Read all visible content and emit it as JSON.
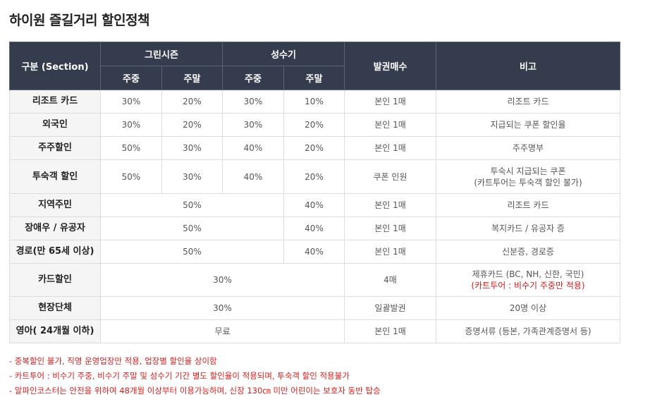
{
  "page": {
    "title": "하이원 즐길거리 할인정책"
  },
  "table": {
    "headers": {
      "section": "구분 (Section)",
      "green_season": "그린시즌",
      "peak_season": "성수기",
      "weekday": "주중",
      "weekend": "주말",
      "tickets": "발권매수",
      "remarks": "비고"
    },
    "rows": [
      {
        "name": "리조트 카드",
        "g_weekday": "30%",
        "g_weekend": "20%",
        "p_weekday": "30%",
        "p_weekend": "10%",
        "tickets": "본인 1매",
        "remark": "리조트 카드"
      },
      {
        "name": "외국인",
        "g_weekday": "30%",
        "g_weekend": "20%",
        "p_weekday": "30%",
        "p_weekend": "20%",
        "tickets": "본인 1매",
        "remark": "지급되는 쿠폰 할인율"
      },
      {
        "name": "주주할인",
        "g_weekday": "50%",
        "g_weekend": "30%",
        "p_weekday": "40%",
        "p_weekend": "20%",
        "tickets": "본인 1매",
        "remark": "주주명부"
      },
      {
        "name": "투숙객 할인",
        "g_weekday": "50%",
        "g_weekend": "30%",
        "p_weekday": "40%",
        "p_weekend": "20%",
        "tickets": "쿠폰 인원",
        "remark_line1": "투숙시 지급되는 쿠폰",
        "remark_line2": "(카트투어는 투숙객 할인 불가)"
      },
      {
        "name": "지역주민",
        "green": "50%",
        "p_weekend": "40%",
        "tickets": "본인 1매",
        "remark": "리조트 카드"
      },
      {
        "name": "장애우 / 유공자",
        "green": "50%",
        "p_weekend": "40%",
        "tickets": "본인 1매",
        "remark": "복지카드 / 유공자 증"
      },
      {
        "name": "경로(만 65세 이상)",
        "green": "50%",
        "p_weekend": "40%",
        "tickets": "본인 1매",
        "remark": "신분증, 경로증"
      },
      {
        "name": "카드할인",
        "all": "30%",
        "tickets": "4매",
        "remark_line1": "제휴카드 (BC, NH, 신한, 국민)",
        "remark_line2": "(카트투어 : 비수기 주중만 적용)"
      },
      {
        "name": "현장단체",
        "all": "30%",
        "tickets": "일괄발권",
        "remark": "20명 이상"
      },
      {
        "name": "영아( 24개월 이하)",
        "all": "무료",
        "tickets": "본인 1매",
        "remark": "증명서류 (등본, 가족관계증명서 등)"
      }
    ]
  },
  "notes": [
    "- 중복할인 불가, 직영 운영업장만 적용, 업장별 할인율 상이함",
    "- 카트투어 : 비수기 주중, 비수기 주말 및 성수기 기간 별도 할인율이 적용되며, 투숙객 할인 적용불가",
    "- 알파인코스터는 안전을 위하여 48개월 이상부터 이용가능하며, 신장 130㎝ 미만 어린이는 보호자 동반 탑승"
  ],
  "colors": {
    "header_bg": "#343c4e",
    "row_head_bg": "#f5f5f5",
    "accent_red": "#d41d1d"
  }
}
